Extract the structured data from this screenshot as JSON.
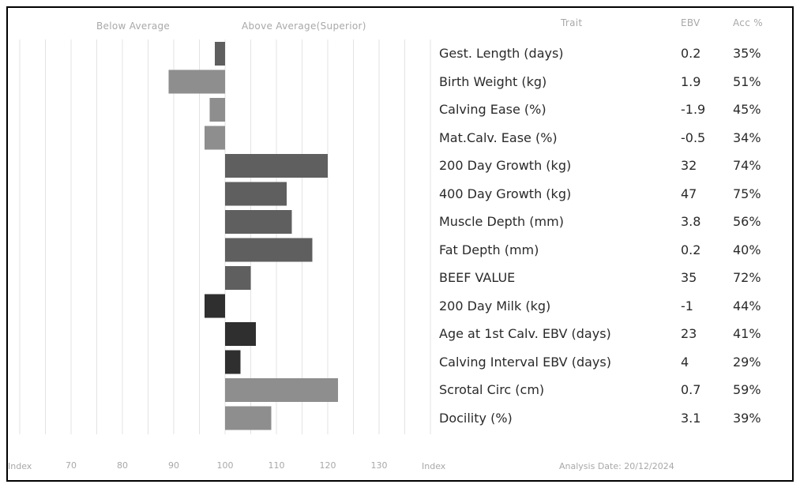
{
  "header": {
    "below_label": "Below Average",
    "above_label": "Above Average(Superior)",
    "trait_label": "Trait",
    "ebv_label": "EBV",
    "acc_label": "Acc %"
  },
  "footer": {
    "index_left": "Index",
    "index_right": "Index",
    "analysis_date": "Analysis Date: 20/12/2024"
  },
  "colors": {
    "light": "#8e8e8e",
    "medium": "#5f5f5f",
    "dark": "#2f2f2f",
    "grid": "#e3e3e3"
  },
  "chart_data": {
    "type": "bar",
    "orientation": "horizontal",
    "baseline": 100,
    "xlim": [
      70,
      130
    ],
    "xticks": [
      70,
      80,
      90,
      100,
      110,
      120,
      130
    ],
    "grid": true,
    "rows": [
      {
        "trait": "Gest. Length (days)",
        "ebv": "0.2",
        "acc": "35%",
        "index": 98,
        "shade": "medium"
      },
      {
        "trait": "Birth Weight (kg)",
        "ebv": "1.9",
        "acc": "51%",
        "index": 89,
        "shade": "light"
      },
      {
        "trait": "Calving Ease (%)",
        "ebv": "-1.9",
        "acc": "45%",
        "index": 97,
        "shade": "light"
      },
      {
        "trait": "Mat.Calv. Ease (%)",
        "ebv": "-0.5",
        "acc": "34%",
        "index": 96,
        "shade": "light"
      },
      {
        "trait": "200 Day Growth (kg)",
        "ebv": "32",
        "acc": "74%",
        "index": 120,
        "shade": "medium"
      },
      {
        "trait": "400 Day Growth (kg)",
        "ebv": "47",
        "acc": "75%",
        "index": 112,
        "shade": "medium"
      },
      {
        "trait": "Muscle Depth (mm)",
        "ebv": "3.8",
        "acc": "56%",
        "index": 113,
        "shade": "medium"
      },
      {
        "trait": "Fat Depth (mm)",
        "ebv": "0.2",
        "acc": "40%",
        "index": 117,
        "shade": "medium"
      },
      {
        "trait": "BEEF VALUE",
        "ebv": "35",
        "acc": "72%",
        "index": 105,
        "shade": "medium"
      },
      {
        "trait": "200 Day Milk (kg)",
        "ebv": "-1",
        "acc": "44%",
        "index": 96,
        "shade": "dark"
      },
      {
        "trait": "Age at 1st Calv. EBV (days)",
        "ebv": "23",
        "acc": "41%",
        "index": 106,
        "shade": "dark"
      },
      {
        "trait": "Calving Interval EBV (days)",
        "ebv": "4",
        "acc": "29%",
        "index": 103,
        "shade": "dark"
      },
      {
        "trait": "Scrotal Circ (cm)",
        "ebv": "0.7",
        "acc": "59%",
        "index": 122,
        "shade": "light"
      },
      {
        "trait": "Docility (%)",
        "ebv": "3.1",
        "acc": "39%",
        "index": 109,
        "shade": "light"
      }
    ]
  }
}
